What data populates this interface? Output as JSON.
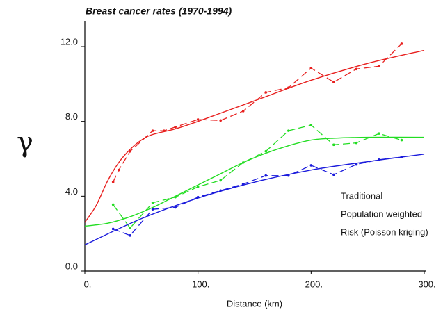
{
  "chart_data": {
    "type": "line",
    "title": "Breast cancer rates (1970-1994)",
    "xlabel": "Distance (km)",
    "ylabel": "γ",
    "xlim": [
      0,
      300
    ],
    "ylim": [
      0,
      12
    ],
    "xticks": [
      {
        "value": 0,
        "label": "0."
      },
      {
        "value": 100,
        "label": "100."
      },
      {
        "value": 200,
        "label": "200."
      },
      {
        "value": 300,
        "label": "300."
      }
    ],
    "yticks": [
      {
        "value": 0,
        "label": "0.0"
      },
      {
        "value": 4,
        "label": "4.0"
      },
      {
        "value": 8,
        "label": "8.0"
      },
      {
        "value": 12,
        "label": "12.0"
      }
    ],
    "series": [
      {
        "name": "Traditional",
        "color": "#e8201f",
        "x": [
          25,
          30,
          40,
          60,
          70,
          80,
          100,
          120,
          140,
          160,
          180,
          200,
          220,
          240,
          260,
          280
        ],
        "values": [
          4.76,
          5.4,
          6.4,
          7.5,
          7.5,
          7.7,
          8.1,
          8.05,
          8.55,
          9.55,
          9.8,
          10.85,
          10.1,
          10.8,
          10.95,
          12.15
        ],
        "model": {
          "x": [
            0,
            10,
            20,
            30,
            40,
            50,
            60,
            80,
            100,
            150,
            200,
            250,
            300
          ],
          "values": [
            2.6,
            3.5,
            4.8,
            5.8,
            6.5,
            7.0,
            7.3,
            7.6,
            8.0,
            9.1,
            10.2,
            11.1,
            11.8
          ]
        }
      },
      {
        "name": "Population weighted",
        "color": "#22dd22",
        "x": [
          25,
          40,
          60,
          80,
          100,
          120,
          140,
          160,
          180,
          200,
          220,
          240,
          260,
          280
        ],
        "values": [
          3.55,
          2.3,
          3.65,
          3.95,
          4.5,
          4.85,
          5.8,
          6.4,
          7.5,
          7.8,
          6.75,
          6.85,
          7.35,
          7.0
        ],
        "model": {
          "x": [
            0,
            20,
            40,
            60,
            80,
            100,
            120,
            140,
            160,
            180,
            200,
            220,
            250,
            300
          ],
          "values": [
            2.4,
            2.55,
            2.9,
            3.4,
            4.0,
            4.6,
            5.2,
            5.8,
            6.3,
            6.7,
            7.0,
            7.1,
            7.15,
            7.15
          ]
        }
      },
      {
        "name": "Risk (Poisson kriging)",
        "color": "#1a1adc",
        "x": [
          25,
          40,
          60,
          80,
          100,
          120,
          140,
          160,
          180,
          200,
          220,
          240,
          260,
          280
        ],
        "values": [
          2.25,
          1.9,
          3.3,
          3.4,
          3.95,
          4.3,
          4.65,
          5.1,
          5.1,
          5.65,
          5.15,
          5.7,
          5.95,
          6.1
        ],
        "model": {
          "x": [
            0,
            50,
            100,
            150,
            200,
            250,
            300
          ],
          "values": [
            1.4,
            2.8,
            3.9,
            4.75,
            5.4,
            5.85,
            6.25
          ]
        }
      }
    ]
  }
}
